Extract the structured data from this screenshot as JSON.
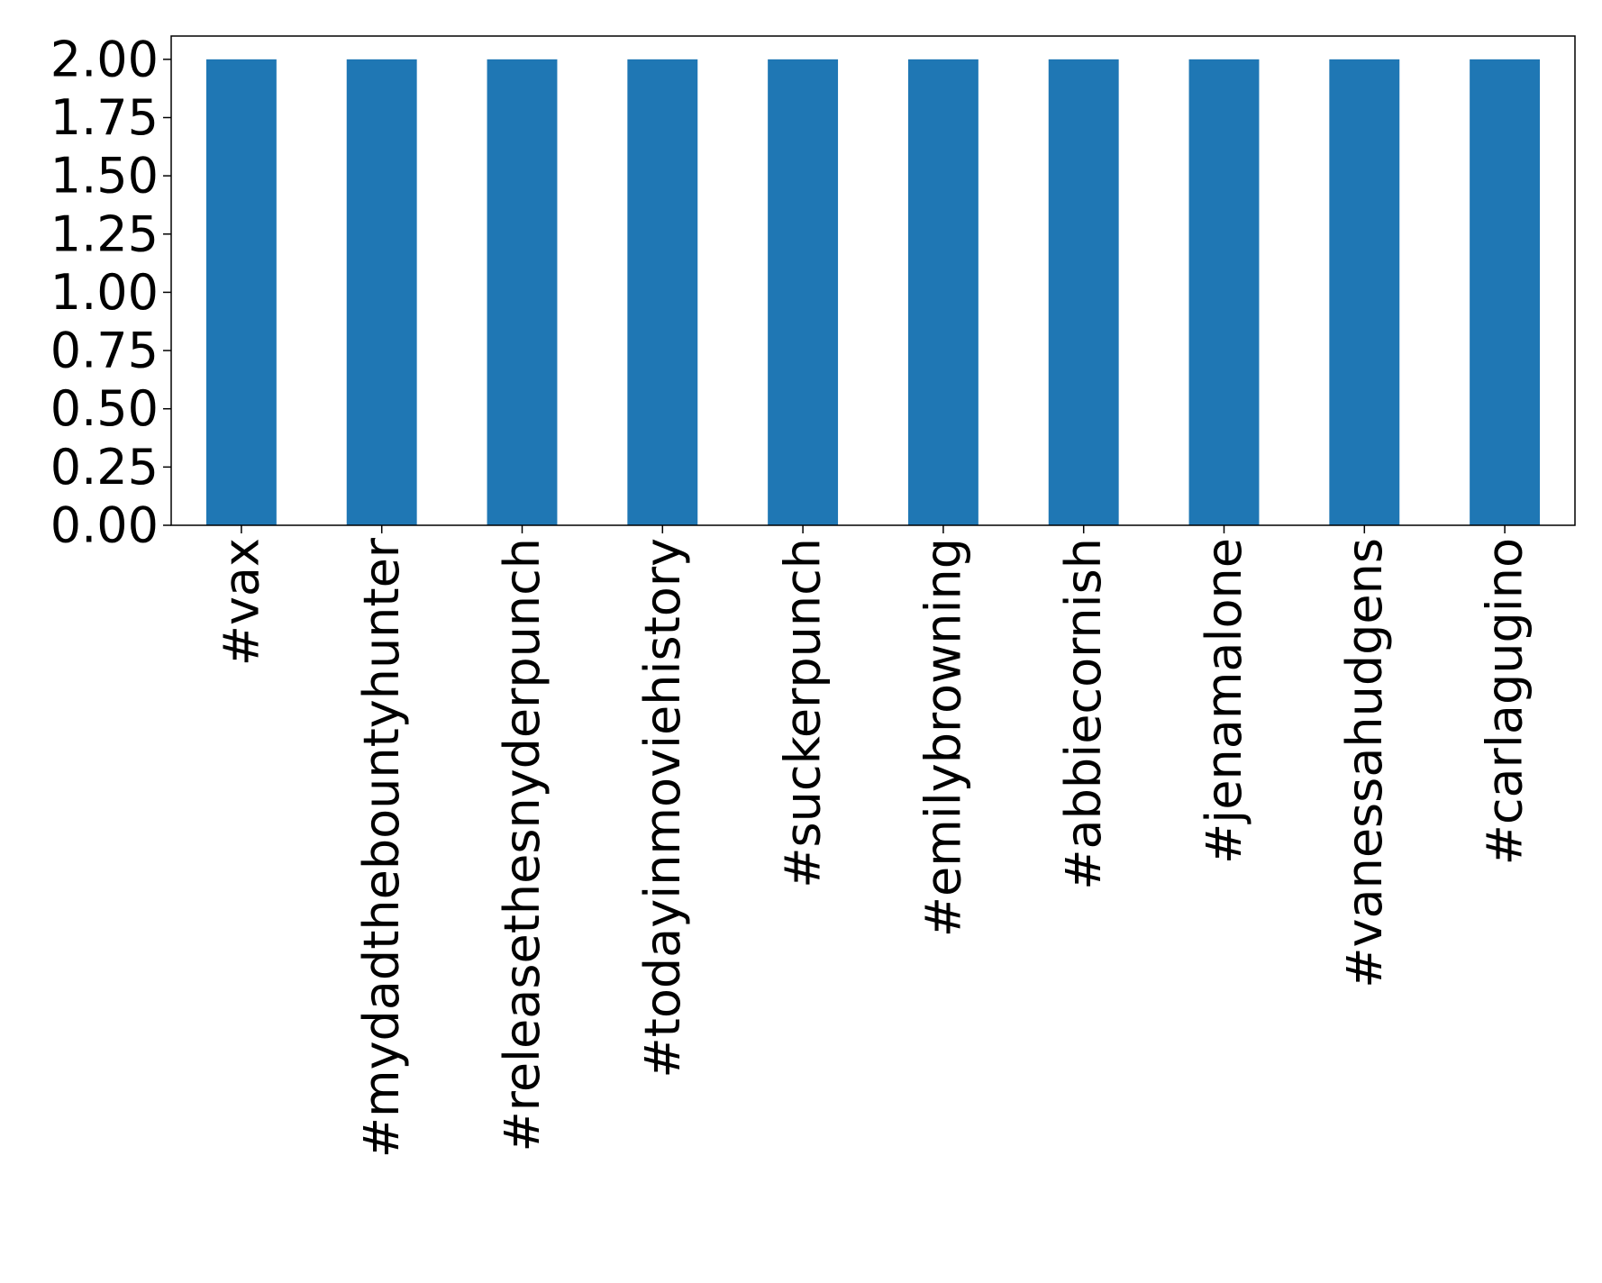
{
  "chart_data": {
    "type": "bar",
    "categories": [
      "#vax",
      "#mydadthebountyhunter",
      "#releasethesnyderpunch",
      "#todayinmoviehistory",
      "#suckerpunch",
      "#emilybrowning",
      "#abbiecornish",
      "#jenamalone",
      "#vanessahudgens",
      "#carlagugino"
    ],
    "values": [
      2,
      2,
      2,
      2,
      2,
      2,
      2,
      2,
      2,
      2
    ],
    "yticks": [
      "0.00",
      "0.25",
      "0.50",
      "0.75",
      "1.00",
      "1.25",
      "1.50",
      "1.75",
      "2.00"
    ],
    "ylim": [
      0,
      2.1
    ],
    "title": "",
    "xlabel": "",
    "ylabel": "",
    "bar_color": "#1f77b4",
    "grid": false,
    "legend": "none"
  }
}
